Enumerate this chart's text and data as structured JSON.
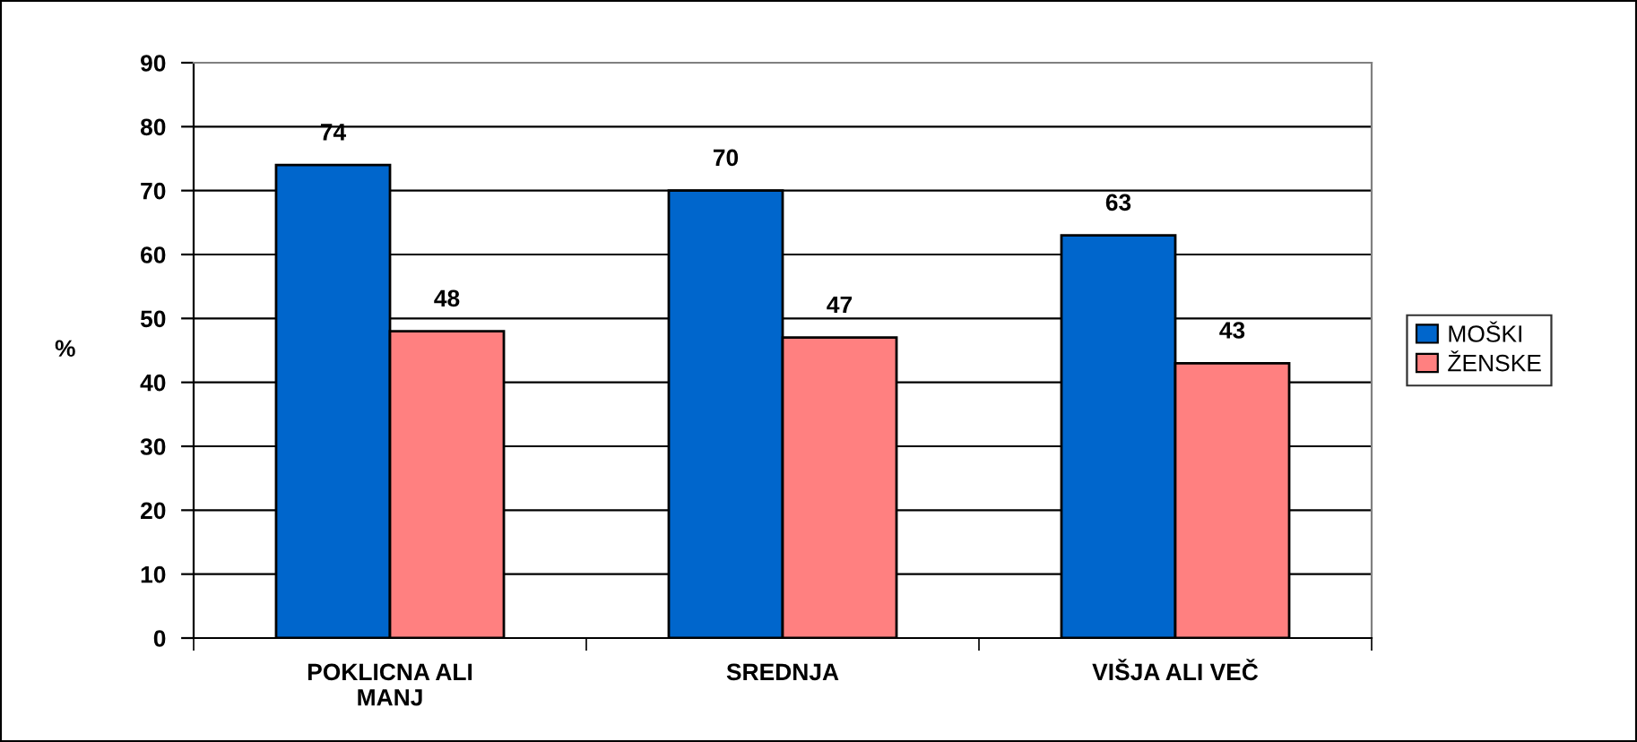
{
  "chart_data": {
    "type": "bar",
    "categories": [
      "POKLICNA ALI\nMANJ",
      "SREDNJA",
      "VIŠJA ALI VEČ"
    ],
    "series": [
      {
        "name": "MOŠKI",
        "color": "#0066cc",
        "values": [
          74,
          70,
          63
        ]
      },
      {
        "name": "ŽENSKE",
        "color": "#ff8080",
        "values": [
          48,
          47,
          43
        ]
      }
    ],
    "ylabel": "%",
    "ylim": [
      0,
      90
    ],
    "yticks": [
      0,
      10,
      20,
      30,
      40,
      50,
      60,
      70,
      80,
      90
    ],
    "grid": "y",
    "legend": "right",
    "data_labels": true
  }
}
